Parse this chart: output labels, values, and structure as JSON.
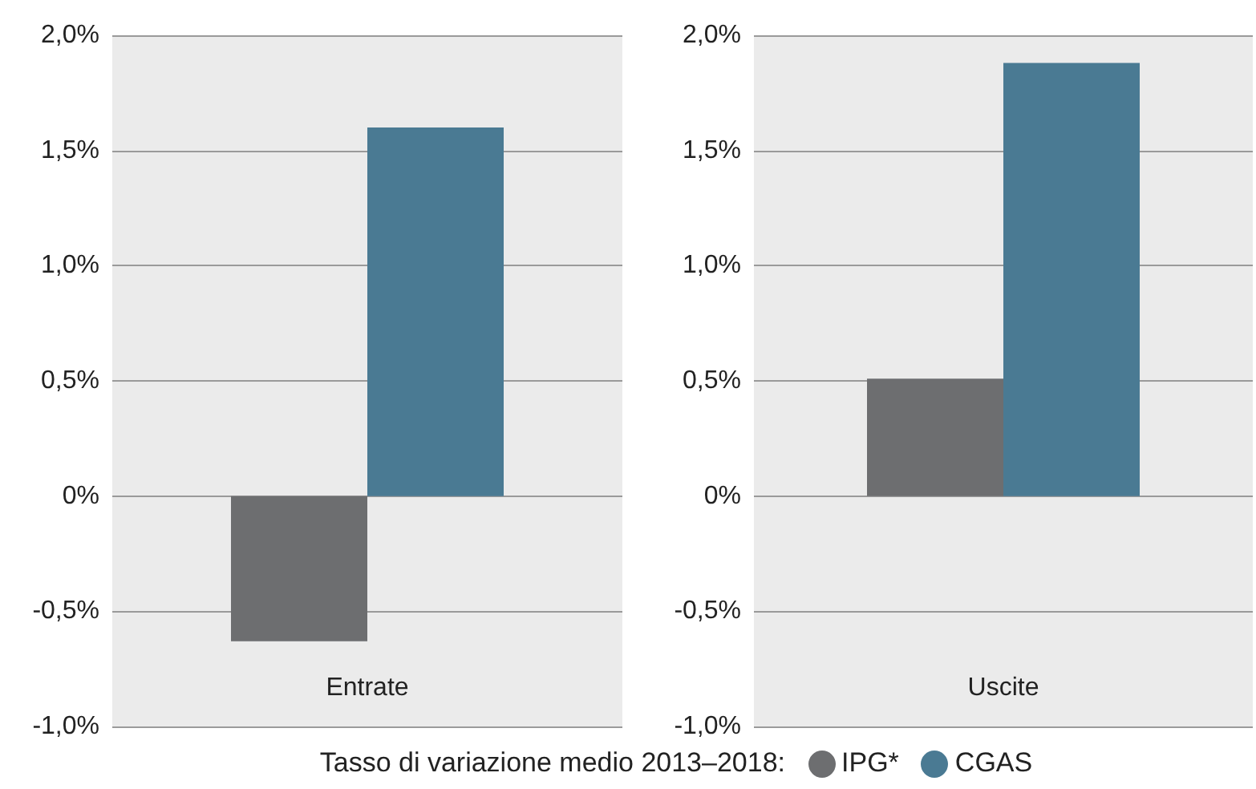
{
  "chart_data": [
    {
      "type": "bar",
      "categories": [
        "Entrate"
      ],
      "series": [
        {
          "name": "IPG*",
          "color": "#6d6e70",
          "values": [
            -0.63
          ]
        },
        {
          "name": "CGAS",
          "color": "#4a7a93",
          "values": [
            1.6
          ]
        }
      ],
      "ylim": [
        -1,
        2
      ],
      "yticks": [
        {
          "value": -1,
          "label": "-1,0%"
        },
        {
          "value": -0.5,
          "label": "-0,5%"
        },
        {
          "value": 0,
          "label": "0%"
        },
        {
          "value": 0.5,
          "label": "0,5%"
        },
        {
          "value": 1,
          "label": "1,0%"
        },
        {
          "value": 1.5,
          "label": "1,5%"
        },
        {
          "value": 2,
          "label": "2,0%"
        }
      ],
      "grid": "y",
      "legend": "bottom",
      "legend_title": "Tasso di variazione medio 2013–2018:"
    },
    {
      "type": "bar",
      "categories": [
        "Uscite"
      ],
      "series": [
        {
          "color": "#6d6e70",
          "values": [
            0.51
          ]
        },
        {
          "color": "#4a7a93",
          "values": [
            1.88
          ]
        }
      ],
      "ylim": [
        -1,
        2
      ],
      "yticks": [
        {
          "value": -1,
          "label": "-1,0%"
        },
        {
          "value": -0.5,
          "label": "-0,5%"
        },
        {
          "value": 0,
          "label": "0%"
        },
        {
          "value": 0.5,
          "label": "0,5%"
        },
        {
          "value": 1,
          "label": "1,0%"
        },
        {
          "value": 1.5,
          "label": "1,5%"
        },
        {
          "value": 2,
          "label": "2,0%"
        }
      ],
      "grid": "y"
    }
  ]
}
